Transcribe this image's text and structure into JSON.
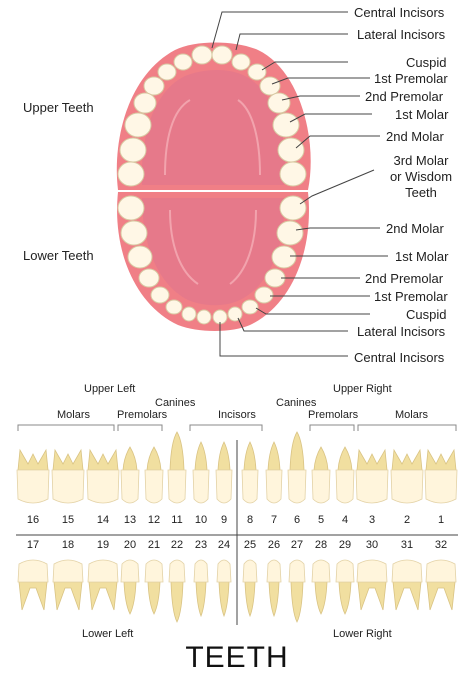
{
  "jaw": {
    "upper_label": "Upper Teeth",
    "lower_label": "Lower Teeth",
    "upper_callouts": [
      "Central Incisors",
      "Lateral Incisors",
      "Cuspid",
      "1st Premolar",
      "2nd Premolar",
      "1st Molar",
      "2nd Molar"
    ],
    "wisdom_callout": [
      "3rd Molar",
      "or Wisdom",
      "Teeth"
    ],
    "lower_callouts": [
      "2nd Molar",
      "1st Molar",
      "2nd Premolar",
      "1st Premolar",
      "Cuspid",
      "Lateral Incisors",
      "Central Incisors"
    ]
  },
  "chart": {
    "upper_left": "Upper Left",
    "upper_right": "Upper Right",
    "lower_left": "Lower Left",
    "lower_right": "Lower Right",
    "groups_top": [
      "Canines",
      "Canines"
    ],
    "groups": [
      "Molars",
      "Premolars",
      "Incisors",
      "Premolars",
      "Molars"
    ],
    "upper_numbers": [
      "16",
      "15",
      "14",
      "13",
      "12",
      "11",
      "10",
      "9",
      "8",
      "7",
      "6",
      "5",
      "4",
      "3",
      "2",
      "1"
    ],
    "lower_numbers": [
      "17",
      "18",
      "19",
      "20",
      "21",
      "22",
      "23",
      "24",
      "25",
      "26",
      "27",
      "28",
      "29",
      "30",
      "31",
      "32"
    ]
  },
  "title": "TEETH",
  "colors": {
    "gum": "#f07f86",
    "palate": "#e77f8a",
    "tooth": "#fff5dc",
    "root": "#f1dfa0",
    "line": "#444444"
  }
}
